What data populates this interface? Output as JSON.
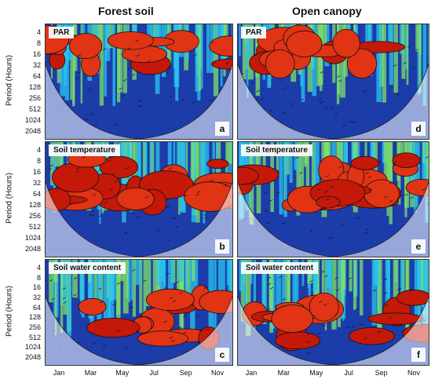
{
  "columns": [
    "Forest soil",
    "Open canopy"
  ],
  "ylabel": "Period (Hours)",
  "period_ticks": [
    "4",
    "8",
    "16",
    "32",
    "64",
    "128",
    "256",
    "512",
    "1024",
    "2048"
  ],
  "month_ticks": [
    "Jan",
    "Mar",
    "May",
    "Jul",
    "Sep",
    "Nov"
  ],
  "chart_data": [
    {
      "type": "heatmap",
      "column": "Forest soil",
      "title": "PAR",
      "panel": "a",
      "ylabel": "Period (Hours)",
      "yticks": [
        4,
        8,
        16,
        32,
        64,
        128,
        256,
        512,
        1024,
        2048
      ],
      "xticks": [
        "Jan",
        "Mar",
        "May",
        "Jul",
        "Sep",
        "Nov"
      ]
    },
    {
      "type": "heatmap",
      "column": "Open canopy",
      "title": "PAR",
      "panel": "d",
      "yticks": [
        4,
        8,
        16,
        32,
        64,
        128,
        256,
        512,
        1024,
        2048
      ],
      "xticks": [
        "Jan",
        "Mar",
        "May",
        "Jul",
        "Sep",
        "Nov"
      ]
    },
    {
      "type": "heatmap",
      "column": "Forest soil",
      "title": "Soil temperature",
      "panel": "b",
      "ylabel": "Period (Hours)",
      "yticks": [
        4,
        8,
        16,
        32,
        64,
        128,
        256,
        512,
        1024,
        2048
      ],
      "xticks": [
        "Jan",
        "Mar",
        "May",
        "Jul",
        "Sep",
        "Nov"
      ]
    },
    {
      "type": "heatmap",
      "column": "Open canopy",
      "title": "Soil temperature",
      "panel": "e",
      "yticks": [
        4,
        8,
        16,
        32,
        64,
        128,
        256,
        512,
        1024,
        2048
      ],
      "xticks": [
        "Jan",
        "Mar",
        "May",
        "Jul",
        "Sep",
        "Nov"
      ]
    },
    {
      "type": "heatmap",
      "column": "Forest soil",
      "title": "Soil water content",
      "panel": "c",
      "ylabel": "Period (Hours)",
      "yticks": [
        4,
        8,
        16,
        32,
        64,
        128,
        256,
        512,
        1024,
        2048
      ],
      "xticks": [
        "Jan",
        "Mar",
        "May",
        "Jul",
        "Sep",
        "Nov"
      ]
    },
    {
      "type": "heatmap",
      "column": "Open canopy",
      "title": "Soil water content",
      "panel": "f",
      "yticks": [
        4,
        8,
        16,
        32,
        64,
        128,
        256,
        512,
        1024,
        2048
      ],
      "xticks": [
        "Jan",
        "Mar",
        "May",
        "Jul",
        "Sep",
        "Nov"
      ]
    }
  ],
  "colors": {
    "low": "#1f3fb4",
    "mid": "#22b6e8",
    "high": "#e03414",
    "peak": "#c41808"
  }
}
